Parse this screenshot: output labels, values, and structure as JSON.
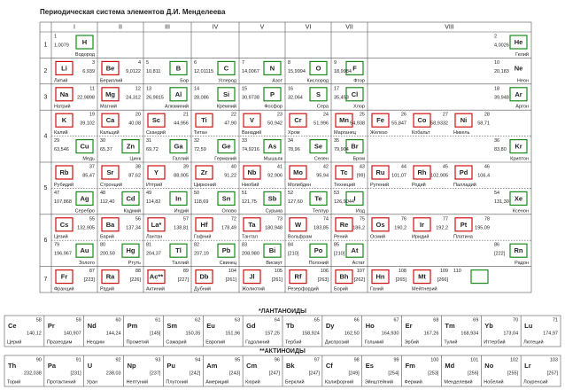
{
  "title": "Периодическая система элементов Д.И. Менделеева",
  "groups": [
    "I",
    "II",
    "III",
    "IV",
    "V",
    "VI",
    "VII",
    "VIII"
  ],
  "rows": [
    {
      "period": 1,
      "cells": [
        [
          {
            "number": 1,
            "symbol": "H",
            "mass": "1,0079",
            "name": "Водород",
            "frame": "#1a8a1a"
          }
        ],
        [],
        [],
        [],
        [],
        [],
        [],
        [
          {
            "number": 2,
            "symbol": "He",
            "mass": "4,0026",
            "name": "Гелий",
            "frame": "#1a8a1a"
          }
        ]
      ]
    },
    {
      "period": 2,
      "cells": [
        [
          {
            "number": 3,
            "symbol": "Li",
            "mass": "6,939",
            "name": "Литий",
            "frame": "#d01010"
          }
        ],
        [
          {
            "number": 4,
            "symbol": "Be",
            "mass": "9,0122",
            "name": "Бериллий",
            "frame": "#d01010"
          }
        ],
        [
          {
            "number": 5,
            "symbol": "B",
            "mass": "10,811",
            "name": "Бор",
            "frame": "#1a8a1a"
          }
        ],
        [
          {
            "number": 6,
            "symbol": "C",
            "mass": "12,01115",
            "name": "Углерод",
            "frame": "#1a8a1a"
          }
        ],
        [
          {
            "number": 7,
            "symbol": "N",
            "mass": "14,0067",
            "name": "Азот",
            "frame": "#1a8a1a"
          }
        ],
        [
          {
            "number": 8,
            "symbol": "O",
            "mass": "15,9994",
            "name": "Кислород",
            "frame": "#1a8a1a"
          }
        ],
        [
          {
            "number": 9,
            "symbol": "F",
            "mass": "18,9984",
            "name": "Фтор",
            "frame": "#1a8a1a"
          }
        ],
        [
          {
            "number": 10,
            "symbol": "Ne",
            "mass": "20,183",
            "name": "Неон"
          }
        ]
      ]
    },
    {
      "period": 3,
      "cells": [
        [
          {
            "number": 11,
            "symbol": "Na",
            "mass": "22,9898",
            "name": "Натрий",
            "frame": "#d01010"
          }
        ],
        [
          {
            "number": 12,
            "symbol": "Mg",
            "mass": "24,312",
            "name": "Магний",
            "frame": "#d01010"
          }
        ],
        [
          {
            "number": 13,
            "symbol": "Al",
            "mass": "26,9815",
            "name": "Алюминий",
            "frame": "#1a8a1a"
          }
        ],
        [
          {
            "number": 14,
            "symbol": "Si",
            "mass": "28,086",
            "name": "Кремний",
            "frame": "#1a8a1a"
          }
        ],
        [
          {
            "number": 15,
            "symbol": "P",
            "mass": "30,9738",
            "name": "Фосфор",
            "frame": "#1a8a1a"
          }
        ],
        [
          {
            "number": 16,
            "symbol": "S",
            "mass": "32,064",
            "name": "Сера",
            "frame": "#1a8a1a"
          }
        ],
        [
          {
            "number": 17,
            "symbol": "Cl",
            "mass": "35,453",
            "name": "Хлор",
            "frame": "#1a8a1a"
          }
        ],
        [
          {
            "number": 18,
            "symbol": "Ar",
            "mass": "39,948",
            "name": "Аргон",
            "frame": "#1a8a1a"
          }
        ]
      ]
    },
    {
      "period": 4,
      "cells": [
        [
          {
            "number": 19,
            "symbol": "K",
            "mass": "39,102",
            "name": "Калий",
            "frame": "#d01010"
          }
        ],
        [
          {
            "number": 20,
            "symbol": "Ca",
            "mass": "40,08",
            "name": "Кальций",
            "frame": "#d01010"
          }
        ],
        [
          {
            "number": 21,
            "symbol": "Sc",
            "mass": "44,956",
            "name": "Скандий",
            "frame": "#d01010"
          }
        ],
        [
          {
            "number": 22,
            "symbol": "Ti",
            "mass": "47,90",
            "name": "Титан",
            "frame": "#d01010"
          }
        ],
        [
          {
            "number": 23,
            "symbol": "V",
            "mass": "50,942",
            "name": "Ванадий",
            "frame": "#d01010"
          }
        ],
        [
          {
            "number": 24,
            "symbol": "Cr",
            "mass": "51,996",
            "name": "Хром",
            "frame": "#d01010"
          }
        ],
        [
          {
            "number": 25,
            "symbol": "Mn",
            "mass": "54,938",
            "name": "Марганец",
            "frame": "#d01010"
          }
        ],
        [
          {
            "number": 26,
            "symbol": "Fe",
            "mass": "55,847",
            "name": "Железо",
            "frame": "#d01010"
          },
          {
            "number": 27,
            "symbol": "Co",
            "mass": "58,9332",
            "name": "Кобальт",
            "frame": "#d01010"
          },
          {
            "number": 28,
            "symbol": "Ni",
            "mass": "58,71",
            "name": "Никель",
            "frame": "#d01010"
          }
        ]
      ]
    },
    {
      "cells": [
        [
          {
            "number": 29,
            "symbol": "Cu",
            "mass": "63,546",
            "name": "Медь",
            "frame": "#1a8a1a"
          }
        ],
        [
          {
            "number": 30,
            "symbol": "Zn",
            "mass": "65,37",
            "name": "Цинк",
            "frame": "#1a8a1a"
          }
        ],
        [
          {
            "number": 31,
            "symbol": "Ga",
            "mass": "69,72",
            "name": "Галлий",
            "frame": "#1a8a1a"
          }
        ],
        [
          {
            "number": 32,
            "symbol": "Ge",
            "mass": "72,59",
            "name": "Германий",
            "frame": "#1a8a1a"
          }
        ],
        [
          {
            "number": 33,
            "symbol": "As",
            "mass": "74,9216",
            "name": "Мышьяк",
            "frame": "#1a8a1a"
          }
        ],
        [
          {
            "number": 34,
            "symbol": "Se",
            "mass": "78,96",
            "name": "Селен",
            "frame": "#1a8a1a"
          }
        ],
        [
          {
            "number": 35,
            "symbol": "Br",
            "mass": "79,904",
            "name": "Бром",
            "frame": "#1a8a1a"
          }
        ],
        [
          {
            "number": 36,
            "symbol": "Kr",
            "mass": "83,80",
            "name": "Криптон",
            "frame": "#1a8a1a"
          }
        ]
      ]
    },
    {
      "period": 5,
      "cells": [
        [
          {
            "number": 37,
            "symbol": "Rb",
            "mass": "85,47",
            "name": "Рубидий",
            "frame": "#d01010"
          }
        ],
        [
          {
            "number": 38,
            "symbol": "Sr",
            "mass": "87,62",
            "name": "Стронций",
            "frame": "#d01010"
          }
        ],
        [
          {
            "number": 39,
            "symbol": "Y",
            "mass": "88,905",
            "name": "Иттрий",
            "frame": "#d01010"
          }
        ],
        [
          {
            "number": 40,
            "symbol": "Zr",
            "mass": "91,22",
            "name": "Цирконий",
            "frame": "#d01010"
          }
        ],
        [
          {
            "number": 41,
            "symbol": "Nb",
            "mass": "92,906",
            "name": "Ниобий",
            "frame": "#d01010"
          }
        ],
        [
          {
            "number": 42,
            "symbol": "Mo",
            "mass": "95,94",
            "name": "Молибден",
            "frame": "#d01010"
          }
        ],
        [
          {
            "number": 43,
            "symbol": "Tc",
            "mass": "[99]",
            "name": "Технеций",
            "frame": "#d01010"
          }
        ],
        [
          {
            "number": 44,
            "symbol": "Ru",
            "mass": "101,07",
            "name": "Рутений",
            "frame": "#d01010"
          },
          {
            "number": 45,
            "symbol": "Rh",
            "mass": "102,905",
            "name": "Родий",
            "frame": "#d01010"
          },
          {
            "number": 46,
            "symbol": "Pd",
            "mass": "106,4",
            "name": "Палладий",
            "frame": "#d01010"
          }
        ]
      ]
    },
    {
      "cells": [
        [
          {
            "number": 47,
            "symbol": "Ag",
            "mass": "107,868",
            "name": "Серебро",
            "frame": "#1a8a1a"
          }
        ],
        [
          {
            "number": 48,
            "symbol": "Cd",
            "mass": "112,40",
            "name": "Кадмий",
            "frame": "#1a8a1a"
          }
        ],
        [
          {
            "number": 49,
            "symbol": "In",
            "mass": "114,82",
            "name": "Индий",
            "frame": "#1a8a1a"
          }
        ],
        [
          {
            "number": 50,
            "symbol": "Sn",
            "mass": "118,69",
            "name": "Олово",
            "frame": "#1a8a1a"
          }
        ],
        [
          {
            "number": 51,
            "symbol": "Sb",
            "mass": "121,75",
            "name": "Сурьма",
            "frame": "#1a8a1a"
          }
        ],
        [
          {
            "number": 52,
            "symbol": "Te",
            "mass": "127,60",
            "name": "Теллур",
            "frame": "#1a8a1a"
          }
        ],
        [
          {
            "number": 53,
            "symbol": "I",
            "mass": "126,9044",
            "name": "Иод",
            "frame": "#1a8a1a"
          }
        ],
        [
          {
            "number": 54,
            "symbol": "Xe",
            "mass": "131,30",
            "name": "Ксенон",
            "frame": "#1a8a1a"
          }
        ]
      ]
    },
    {
      "period": 6,
      "cells": [
        [
          {
            "number": 55,
            "symbol": "Cs",
            "mass": "132,905",
            "name": "Цезий",
            "frame": "#d01010"
          }
        ],
        [
          {
            "number": 56,
            "symbol": "Ba",
            "mass": "137,34",
            "name": "Барий",
            "frame": "#d01010"
          }
        ],
        [
          {
            "number": 57,
            "symbol": "La*",
            "mass": "138,81",
            "name": "Лантан",
            "frame": "#d01010"
          }
        ],
        [
          {
            "number": 72,
            "symbol": "Hf",
            "mass": "178,49",
            "name": "Гафний",
            "frame": "#d01010"
          }
        ],
        [
          {
            "number": 73,
            "symbol": "Ta",
            "mass": "180,948",
            "name": "Тантал",
            "frame": "#d01010"
          }
        ],
        [
          {
            "number": 74,
            "symbol": "W",
            "mass": "183,85",
            "name": "Вольфрам",
            "frame": "#d01010"
          }
        ],
        [
          {
            "number": 75,
            "symbol": "Re",
            "mass": "186,2",
            "name": "Рений",
            "frame": "#d01010"
          }
        ],
        [
          {
            "number": 76,
            "symbol": "Os",
            "mass": "190,2",
            "name": "Осмий",
            "frame": "#d01010"
          },
          {
            "number": 77,
            "symbol": "Ir",
            "mass": "192,2",
            "name": "Иридий",
            "frame": "#d01010"
          },
          {
            "number": 78,
            "symbol": "Pt",
            "mass": "195,09",
            "name": "Платина",
            "frame": "#d01010"
          }
        ]
      ]
    },
    {
      "cells": [
        [
          {
            "number": 79,
            "symbol": "Au",
            "mass": "196,967",
            "name": "Золото",
            "frame": "#1a8a1a"
          }
        ],
        [
          {
            "number": 80,
            "symbol": "Hg",
            "mass": "200,59",
            "name": "Ртуть",
            "frame": "#1a8a1a"
          }
        ],
        [
          {
            "number": 81,
            "symbol": "Tl",
            "mass": "204,37",
            "name": "Таллий",
            "frame": "#1a8a1a"
          }
        ],
        [
          {
            "number": 82,
            "symbol": "Pb",
            "mass": "207,19",
            "name": "Свинец",
            "frame": "#1a8a1a"
          }
        ],
        [
          {
            "number": 83,
            "symbol": "Bi",
            "mass": "208,980",
            "name": "Висмут",
            "frame": "#1a8a1a"
          }
        ],
        [
          {
            "number": 84,
            "symbol": "Po",
            "mass": "[210]",
            "name": "Полоний",
            "frame": "#1a8a1a"
          }
        ],
        [
          {
            "number": 85,
            "symbol": "At",
            "mass": "[210]",
            "name": "Астат",
            "frame": "#1a8a1a"
          }
        ],
        [
          {
            "number": 86,
            "symbol": "Rn",
            "mass": "[222]",
            "name": "Радон",
            "frame": "#1a8a1a"
          }
        ]
      ]
    },
    {
      "period": 7,
      "cells": [
        [
          {
            "number": 87,
            "symbol": "Fr",
            "mass": "[223]",
            "name": "Франций",
            "frame": "#d01010"
          }
        ],
        [
          {
            "number": 88,
            "symbol": "Ra",
            "mass": "[226]",
            "name": "Радий",
            "frame": "#d01010"
          }
        ],
        [
          {
            "number": 89,
            "symbol": "Ac**",
            "mass": "[227]",
            "name": "Актиний",
            "frame": "#d01010"
          }
        ],
        [
          {
            "number": 104,
            "symbol": "Db",
            "mass": "[261]",
            "name": "Дубний",
            "frame": "#d01010"
          }
        ],
        [
          {
            "number": 105,
            "symbol": "Jl",
            "mass": "[261]",
            "name": "Жолиотий",
            "frame": "#d01010"
          }
        ],
        [
          {
            "number": 106,
            "symbol": "Rf",
            "mass": "[263]",
            "name": "Резерфордий",
            "frame": "#d01010"
          }
        ],
        [
          {
            "number": 107,
            "symbol": "Bh",
            "mass": "[262]",
            "name": "Борий",
            "frame": "#d01010"
          }
        ],
        [
          {
            "number": 108,
            "symbol": "Hn",
            "mass": "[265]",
            "name": "Ганий",
            "frame": "#d01010"
          },
          {
            "number": 109,
            "symbol": "Mt",
            "mass": "[266]",
            "name": "Мейтнерий",
            "frame": "#d01010"
          },
          {
            "number": 110,
            "frame": "#1a8a1a"
          }
        ]
      ]
    }
  ],
  "lanthanides": {
    "title": "*ЛАНТАНОИДЫ",
    "elements": [
      {
        "number": 58,
        "symbol": "Ce",
        "mass": "140,12",
        "name": "Церий"
      },
      {
        "number": 59,
        "symbol": "Pr",
        "mass": "140,907",
        "name": "Празеодим"
      },
      {
        "number": 60,
        "symbol": "Nd",
        "mass": "144,24",
        "name": "Неодим"
      },
      {
        "number": 61,
        "symbol": "Pm",
        "mass": "[145]",
        "name": "Прометий"
      },
      {
        "number": 62,
        "symbol": "Sm",
        "mass": "150,35",
        "name": "Самарий"
      },
      {
        "number": 63,
        "symbol": "Eu",
        "mass": "151,96",
        "name": "Европий"
      },
      {
        "number": 64,
        "symbol": "Gd",
        "mass": "157,25",
        "name": "Гадолиний"
      },
      {
        "number": 65,
        "symbol": "Tb",
        "mass": "158,924",
        "name": "Тербий"
      },
      {
        "number": 66,
        "symbol": "Dy",
        "mass": "162,50",
        "name": "Диспрозий"
      },
      {
        "number": 67,
        "symbol": "Ho",
        "mass": "164,930",
        "name": "Гольмий"
      },
      {
        "number": 68,
        "symbol": "Er",
        "mass": "167,26",
        "name": "Эрбий"
      },
      {
        "number": 69,
        "symbol": "Tm",
        "mass": "168,934",
        "name": "Тулий"
      },
      {
        "number": 70,
        "symbol": "Yb",
        "mass": "173,04",
        "name": "Иттербий"
      },
      {
        "number": 71,
        "symbol": "Lu",
        "mass": "174,97",
        "name": "Лютеций"
      }
    ]
  },
  "actinides": {
    "title": "**АКТИНОИДЫ",
    "elements": [
      {
        "number": 90,
        "symbol": "Th",
        "mass": "232,038",
        "name": "Торий"
      },
      {
        "number": 91,
        "symbol": "Pa",
        "mass": "[231]",
        "name": "Протактиний"
      },
      {
        "number": 92,
        "symbol": "U",
        "mass": "238,03",
        "name": "Уран"
      },
      {
        "number": 93,
        "symbol": "Np",
        "mass": "[237]",
        "name": "Нептуний"
      },
      {
        "number": 94,
        "symbol": "Pu",
        "mass": "[242]",
        "name": "Плутоний"
      },
      {
        "number": 95,
        "symbol": "Am",
        "mass": "[243]",
        "name": "Америций"
      },
      {
        "number": 96,
        "symbol": "Cm",
        "mass": "[247]",
        "name": "Кюрий"
      },
      {
        "number": 97,
        "symbol": "Bk",
        "mass": "[247]",
        "name": "Берклий"
      },
      {
        "number": 98,
        "symbol": "Cf",
        "mass": "[249]",
        "name": "Калифорний"
      },
      {
        "number": 99,
        "symbol": "Es",
        "mass": "[254]",
        "name": "Эйнштейний"
      },
      {
        "number": 100,
        "symbol": "Fm",
        "mass": "[253]",
        "name": "Фермий"
      },
      {
        "number": 101,
        "symbol": "Md",
        "mass": "[256]",
        "name": "Менделевий"
      },
      {
        "number": 102,
        "symbol": "No",
        "mass": "[255]",
        "name": "Нобелий"
      },
      {
        "number": 103,
        "symbol": "Lr",
        "mass": "[257]",
        "name": "Лоуренсий"
      }
    ]
  }
}
